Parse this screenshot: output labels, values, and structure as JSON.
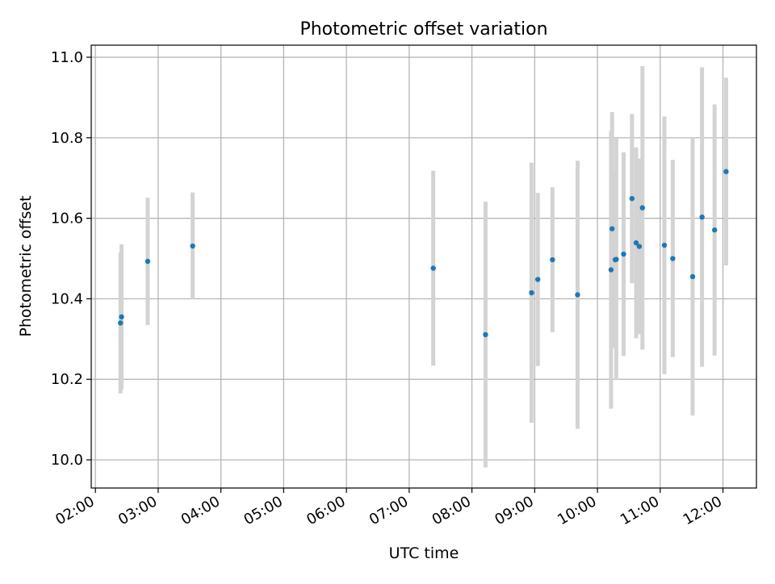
{
  "chart_data": {
    "type": "scatter",
    "title": "Photometric offset variation",
    "xlabel": "UTC time",
    "ylabel": "Photometric offset",
    "grid": true,
    "xlim": [
      "01:56",
      "12:32"
    ],
    "ylim": [
      9.93,
      11.03
    ],
    "xticks": [
      "02:00",
      "03:00",
      "04:00",
      "05:00",
      "06:00",
      "07:00",
      "08:00",
      "09:00",
      "10:00",
      "11:00",
      "12:00"
    ],
    "yticks": [
      "10.0",
      "10.2",
      "10.4",
      "10.6",
      "10.8",
      "11.0"
    ],
    "point_color": "#1f77b4",
    "errorbar_color": "#d3d3d3",
    "points": [
      {
        "t": "02:24",
        "y": 10.34,
        "err": 0.175
      },
      {
        "t": "02:25",
        "y": 10.355,
        "err": 0.18
      },
      {
        "t": "02:50",
        "y": 10.493,
        "err": 0.158
      },
      {
        "t": "03:33",
        "y": 10.531,
        "err": 0.133
      },
      {
        "t": "07:23",
        "y": 10.476,
        "err": 0.242
      },
      {
        "t": "08:13",
        "y": 10.311,
        "err": 0.33
      },
      {
        "t": "08:57",
        "y": 10.415,
        "err": 0.323
      },
      {
        "t": "09:03",
        "y": 10.448,
        "err": 0.215
      },
      {
        "t": "09:17",
        "y": 10.497,
        "err": 0.18
      },
      {
        "t": "09:41",
        "y": 10.41,
        "err": 0.333
      },
      {
        "t": "10:13",
        "y": 10.472,
        "err": 0.345
      },
      {
        "t": "10:14",
        "y": 10.574,
        "err": 0.29
      },
      {
        "t": "10:17",
        "y": 10.497,
        "err": 0.22
      },
      {
        "t": "10:18",
        "y": 10.498,
        "err": 0.3
      },
      {
        "t": "10:25",
        "y": 10.511,
        "err": 0.253
      },
      {
        "t": "10:33",
        "y": 10.649,
        "err": 0.21
      },
      {
        "t": "10:37",
        "y": 10.539,
        "err": 0.237
      },
      {
        "t": "10:40",
        "y": 10.53,
        "err": 0.218
      },
      {
        "t": "10:43",
        "y": 10.626,
        "err": 0.352
      },
      {
        "t": "11:04",
        "y": 10.533,
        "err": 0.32
      },
      {
        "t": "11:12",
        "y": 10.5,
        "err": 0.245
      },
      {
        "t": "11:31",
        "y": 10.455,
        "err": 0.345
      },
      {
        "t": "11:40",
        "y": 10.603,
        "err": 0.372
      },
      {
        "t": "11:52",
        "y": 10.571,
        "err": 0.312
      },
      {
        "t": "12:03",
        "y": 10.716,
        "err": 0.233
      }
    ]
  }
}
